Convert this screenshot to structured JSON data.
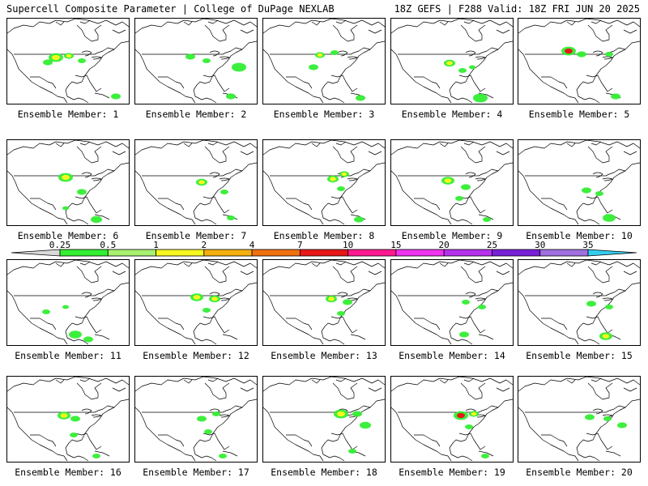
{
  "header": {
    "left": "Supercell Composite Parameter | College of DuPage NEXLAB",
    "right": "18Z GEFS | F288 Valid: 18Z FRI JUN 20 2025"
  },
  "colorbar": {
    "ticks": [
      "0.25",
      "0.5",
      "1",
      "2",
      "4",
      "7",
      "10",
      "15",
      "20",
      "25",
      "30",
      "35"
    ],
    "colors": [
      "#d9d9d9",
      "#33ee33",
      "#a8f070",
      "#f6f620",
      "#f4b010",
      "#f07010",
      "#e81818",
      "#ff1a90",
      "#ee33ee",
      "#b633ee",
      "#7720d8",
      "#a070e0",
      "#33ccee"
    ]
  },
  "member_caption_prefix": "Ensemble Member:",
  "members": [
    {
      "id": "1",
      "blobs": [
        [
          60,
          48,
          9,
          "y"
        ],
        [
          76,
          46,
          6,
          "y"
        ],
        [
          50,
          54,
          6,
          "g"
        ],
        [
          92,
          52,
          5,
          "g"
        ],
        [
          134,
          96,
          6,
          "g"
        ]
      ]
    },
    {
      "id": "2",
      "blobs": [
        [
          68,
          47,
          6,
          "g"
        ],
        [
          88,
          52,
          5,
          "g"
        ],
        [
          128,
          60,
          9,
          "g"
        ],
        [
          118,
          96,
          6,
          "g"
        ]
      ]
    },
    {
      "id": "3",
      "blobs": [
        [
          70,
          45,
          6,
          "y"
        ],
        [
          62,
          60,
          6,
          "g"
        ],
        [
          88,
          42,
          5,
          "g"
        ],
        [
          120,
          98,
          6,
          "g"
        ]
      ]
    },
    {
      "id": "4",
      "blobs": [
        [
          72,
          55,
          7,
          "y"
        ],
        [
          88,
          64,
          5,
          "g"
        ],
        [
          100,
          60,
          4,
          "g"
        ],
        [
          110,
          98,
          9,
          "g"
        ]
      ]
    },
    {
      "id": "5",
      "blobs": [
        [
          62,
          40,
          9,
          "r"
        ],
        [
          78,
          44,
          6,
          "g"
        ],
        [
          112,
          44,
          5,
          "g"
        ],
        [
          120,
          96,
          6,
          "g"
        ]
      ]
    },
    {
      "id": "6",
      "blobs": [
        [
          72,
          46,
          9,
          "y"
        ],
        [
          92,
          64,
          6,
          "g"
        ],
        [
          72,
          84,
          4,
          "g"
        ],
        [
          110,
          98,
          7,
          "g"
        ]
      ]
    },
    {
      "id": "7",
      "blobs": [
        [
          82,
          52,
          7,
          "y"
        ],
        [
          110,
          64,
          5,
          "g"
        ],
        [
          118,
          96,
          5,
          "g"
        ]
      ]
    },
    {
      "id": "8",
      "blobs": [
        [
          86,
          48,
          7,
          "y"
        ],
        [
          100,
          42,
          6,
          "y"
        ],
        [
          96,
          60,
          5,
          "g"
        ],
        [
          118,
          98,
          6,
          "g"
        ]
      ]
    },
    {
      "id": "9",
      "blobs": [
        [
          70,
          50,
          8,
          "y"
        ],
        [
          92,
          58,
          6,
          "g"
        ],
        [
          84,
          72,
          5,
          "g"
        ],
        [
          118,
          98,
          5,
          "g"
        ]
      ]
    },
    {
      "id": "10",
      "blobs": [
        [
          84,
          62,
          6,
          "g"
        ],
        [
          100,
          66,
          5,
          "g"
        ],
        [
          112,
          96,
          8,
          "g"
        ]
      ]
    },
    {
      "id": "11",
      "blobs": [
        [
          48,
          64,
          5,
          "g"
        ],
        [
          72,
          58,
          4,
          "g"
        ],
        [
          84,
          92,
          8,
          "g"
        ],
        [
          100,
          98,
          6,
          "g"
        ]
      ]
    },
    {
      "id": "12",
      "blobs": [
        [
          76,
          46,
          8,
          "y"
        ],
        [
          98,
          48,
          7,
          "y"
        ],
        [
          88,
          62,
          5,
          "g"
        ]
      ]
    },
    {
      "id": "13",
      "blobs": [
        [
          84,
          48,
          7,
          "y"
        ],
        [
          104,
          52,
          6,
          "g"
        ],
        [
          96,
          66,
          5,
          "g"
        ]
      ]
    },
    {
      "id": "14",
      "blobs": [
        [
          92,
          52,
          5,
          "g"
        ],
        [
          112,
          58,
          5,
          "g"
        ],
        [
          90,
          92,
          6,
          "g"
        ]
      ]
    },
    {
      "id": "15",
      "blobs": [
        [
          90,
          54,
          6,
          "g"
        ],
        [
          112,
          58,
          5,
          "g"
        ],
        [
          108,
          94,
          8,
          "y"
        ]
      ]
    },
    {
      "id": "16",
      "blobs": [
        [
          70,
          48,
          8,
          "y"
        ],
        [
          84,
          52,
          6,
          "g"
        ],
        [
          82,
          72,
          5,
          "g"
        ],
        [
          110,
          98,
          5,
          "g"
        ]
      ]
    },
    {
      "id": "17",
      "blobs": [
        [
          82,
          52,
          6,
          "g"
        ],
        [
          100,
          46,
          5,
          "g"
        ],
        [
          90,
          68,
          5,
          "g"
        ],
        [
          108,
          98,
          5,
          "g"
        ]
      ]
    },
    {
      "id": "18",
      "blobs": [
        [
          96,
          46,
          9,
          "y"
        ],
        [
          116,
          46,
          6,
          "g"
        ],
        [
          126,
          60,
          7,
          "g"
        ],
        [
          110,
          92,
          5,
          "g"
        ]
      ]
    },
    {
      "id": "19",
      "blobs": [
        [
          86,
          48,
          9,
          "r"
        ],
        [
          102,
          46,
          6,
          "y"
        ],
        [
          96,
          62,
          5,
          "g"
        ],
        [
          116,
          98,
          5,
          "g"
        ]
      ]
    },
    {
      "id": "20",
      "blobs": [
        [
          88,
          50,
          6,
          "g"
        ],
        [
          110,
          52,
          5,
          "g"
        ],
        [
          128,
          60,
          6,
          "g"
        ]
      ]
    }
  ]
}
